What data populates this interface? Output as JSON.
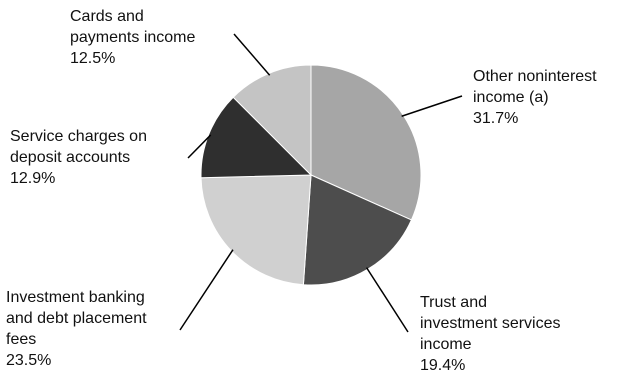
{
  "chart_data": {
    "type": "pie",
    "title": "",
    "slices": [
      {
        "name": "Other noninterest income (a)",
        "label_lines": [
          "Other noninterest",
          "income (a)"
        ],
        "value_text": "31.7%",
        "value": 31.7,
        "color": "#a6a6a6"
      },
      {
        "name": "Trust and investment services income",
        "label_lines": [
          "Trust and",
          "investment services",
          "income"
        ],
        "value_text": "19.4%",
        "value": 19.4,
        "color": "#4d4d4d"
      },
      {
        "name": "Investment banking and debt placement fees",
        "label_lines": [
          "Investment banking",
          "and debt placement",
          "fees"
        ],
        "value_text": "23.5%",
        "value": 23.5,
        "color": "#d0d0d0"
      },
      {
        "name": "Service charges on deposit accounts",
        "label_lines": [
          "Service charges on",
          "deposit accounts"
        ],
        "value_text": "12.9%",
        "value": 12.9,
        "color": "#2f2f2f"
      },
      {
        "name": "Cards and payments income",
        "label_lines": [
          "Cards and",
          "payments income"
        ],
        "value_text": "12.5%",
        "value": 12.5,
        "color": "#c4c4c4"
      }
    ],
    "start": "12 o'clock",
    "direction": "clockwise"
  }
}
